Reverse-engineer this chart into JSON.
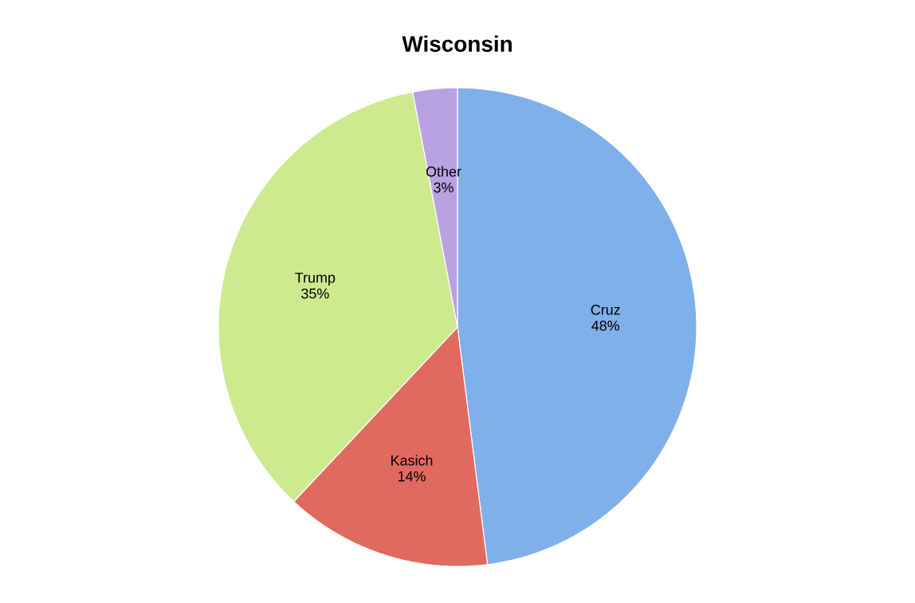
{
  "chart_data": {
    "type": "pie",
    "title": "Wisconsin",
    "categories": [
      "Cruz",
      "Kasich",
      "Trump",
      "Other"
    ],
    "values": [
      48,
      14,
      35,
      3
    ],
    "colors": [
      "#7fb0ea",
      "#e06a60",
      "#cdea8e",
      "#b9a2e2"
    ],
    "value_labels": [
      "48%",
      "14%",
      "35%",
      "3%"
    ]
  }
}
